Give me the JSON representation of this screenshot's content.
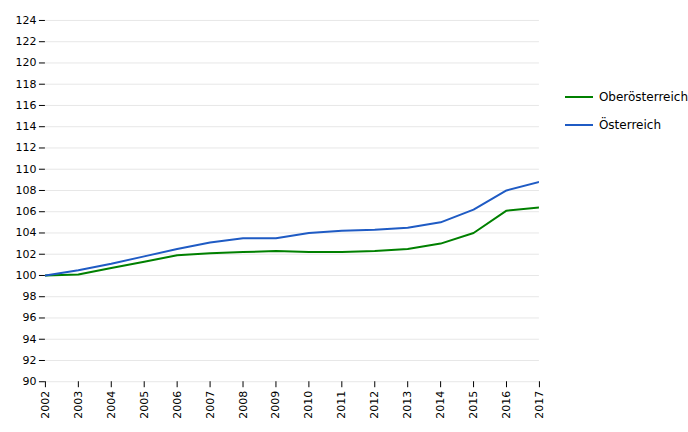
{
  "chart_data": {
    "type": "line",
    "x": [
      2002,
      2003,
      2004,
      2005,
      2006,
      2007,
      2008,
      2009,
      2010,
      2011,
      2012,
      2013,
      2014,
      2015,
      2016,
      2017
    ],
    "series": [
      {
        "name": "Oberösterreich",
        "color": "#008000",
        "values": [
          100.0,
          100.1,
          100.7,
          101.3,
          101.9,
          102.1,
          102.2,
          102.3,
          102.2,
          102.2,
          102.3,
          102.5,
          103.0,
          104.0,
          106.1,
          106.4
        ]
      },
      {
        "name": "Österreich",
        "color": "#1f5bc4",
        "values": [
          100.0,
          100.5,
          101.1,
          101.8,
          102.5,
          103.1,
          103.5,
          103.5,
          104.0,
          104.2,
          104.3,
          104.5,
          105.0,
          106.2,
          108.0,
          108.8
        ]
      }
    ],
    "xlim": [
      2002,
      2017
    ],
    "xticks": [
      2002,
      2003,
      2004,
      2005,
      2006,
      2007,
      2008,
      2009,
      2010,
      2011,
      2012,
      2013,
      2014,
      2015,
      2016,
      2017
    ],
    "ylim": [
      90,
      124
    ],
    "yticks": [
      90,
      92,
      94,
      96,
      98,
      100,
      102,
      104,
      106,
      108,
      110,
      112,
      114,
      116,
      118,
      120,
      122,
      124
    ],
    "grid": true,
    "legend": "right"
  }
}
